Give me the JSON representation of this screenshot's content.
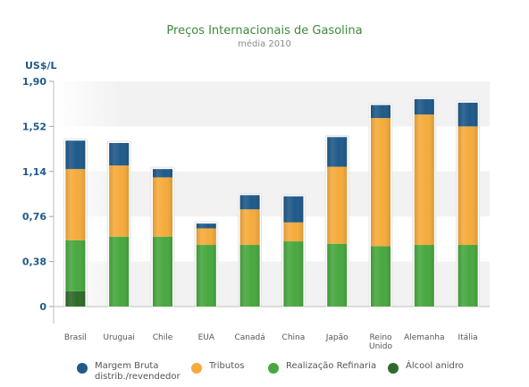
{
  "chart_data": {
    "type": "bar",
    "stacked": true,
    "title": "Preços Internacionais de Gasolina",
    "subtitle": "média 2010",
    "ylabel": "US$/L",
    "ylim": [
      0,
      1.9
    ],
    "yticks": [
      "1,90",
      "1,52",
      "1,14",
      "0,76",
      "0,38",
      "0"
    ],
    "ytick_values": [
      1.9,
      1.52,
      1.14,
      0.76,
      0.38,
      0
    ],
    "categories": [
      "Brasil",
      "Uruguai",
      "Chile",
      "EUA",
      "Canadá",
      "China",
      "Japão",
      "Reino Unido",
      "Alemanha",
      "Itália"
    ],
    "series": [
      {
        "name": "Álcool anidro",
        "color": "#2e6b2a",
        "values": [
          0.13,
          0,
          0,
          0,
          0,
          0,
          0,
          0,
          0,
          0
        ]
      },
      {
        "name": "Realização Refinaria",
        "color": "#48a83f",
        "values": [
          0.43,
          0.59,
          0.59,
          0.52,
          0.52,
          0.55,
          0.53,
          0.51,
          0.52,
          0.52
        ]
      },
      {
        "name": "Tributos",
        "color": "#f5ab3c",
        "values": [
          0.6,
          0.6,
          0.5,
          0.14,
          0.3,
          0.16,
          0.65,
          1.08,
          1.1,
          1.0
        ]
      },
      {
        "name": "Margem Bruta distrib./revendedor",
        "color": "#1f5a8a",
        "values": [
          0.24,
          0.19,
          0.07,
          0.04,
          0.12,
          0.22,
          0.25,
          0.11,
          0.13,
          0.2
        ]
      }
    ],
    "grid": "horizontal bands",
    "legend_position": "bottom"
  },
  "legend": [
    {
      "line1": "Margem Bruta",
      "line2": "distrib./revendedor",
      "color": "#1f5a8a"
    },
    {
      "line1": "Tributos",
      "line2": "",
      "color": "#f5ab3c"
    },
    {
      "line1": "Realização Refinaria",
      "line2": "",
      "color": "#48a83f"
    },
    {
      "line1": "Álcool anidro",
      "line2": "",
      "color": "#2e6b2a"
    }
  ]
}
